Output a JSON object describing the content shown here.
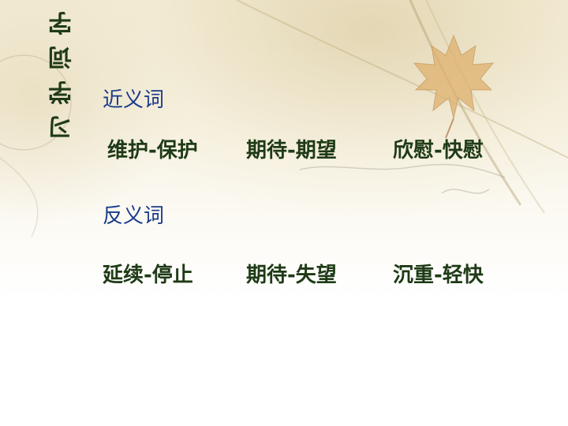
{
  "side_title": [
    "字",
    "词",
    "学",
    "习"
  ],
  "synonyms": {
    "heading": "近义词",
    "pairs": [
      "维护-保护",
      "期待-期望",
      "欣慰-快慰"
    ]
  },
  "antonyms": {
    "heading": "反义词",
    "pairs": [
      "延续-停止",
      "期待-失望",
      "沉重-轻快"
    ]
  }
}
